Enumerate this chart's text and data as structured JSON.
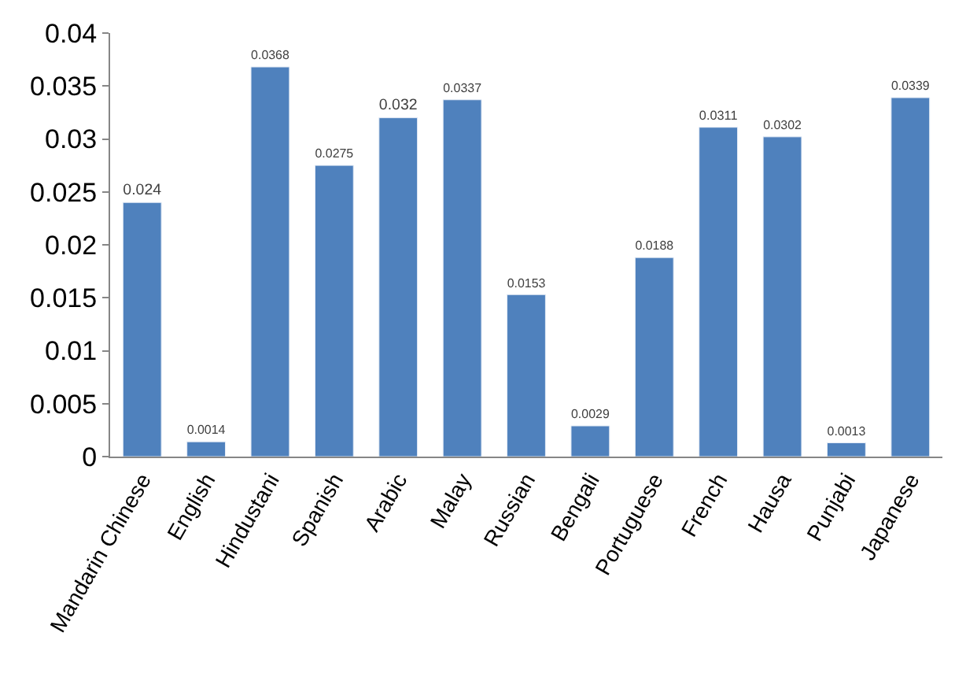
{
  "chart_data": {
    "type": "bar",
    "categories": [
      "Mandarin Chinese",
      "English",
      "Hindustani",
      "Spanish",
      "Arabic",
      "Malay",
      "Russian",
      "Bengali",
      "Portuguese",
      "French",
      "Hausa",
      "Punjabi",
      "Japanese"
    ],
    "values": [
      0.024,
      0.0014,
      0.0368,
      0.0275,
      0.032,
      0.0337,
      0.0153,
      0.0029,
      0.0188,
      0.0311,
      0.0302,
      0.0013,
      0.0339
    ],
    "color": "#4f81bd",
    "ylim": [
      0,
      0.04
    ],
    "yticks": [
      0,
      0.005,
      0.01,
      0.015,
      0.02,
      0.025,
      0.03,
      0.035,
      0.04
    ],
    "data_labels": true,
    "grid": false,
    "legend": false
  }
}
